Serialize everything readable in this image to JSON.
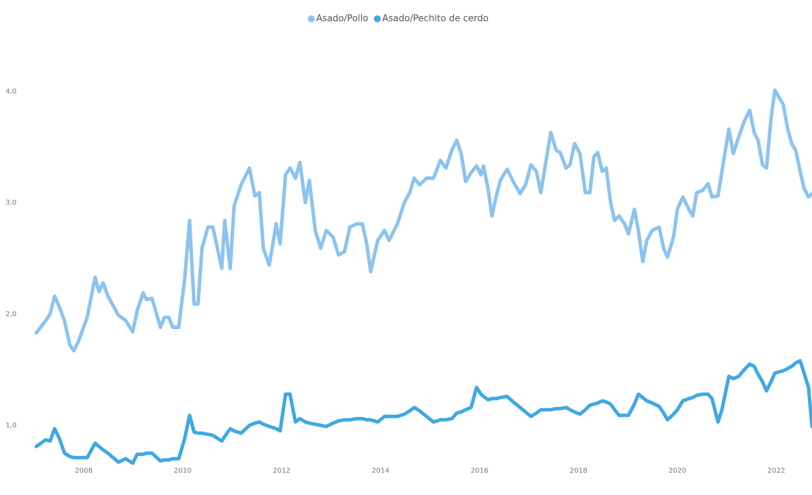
{
  "chart_data": {
    "type": "line",
    "x": [
      2007.04,
      2007.23,
      2007.32,
      2007.41,
      2007.51,
      2007.61,
      2007.72,
      2007.8,
      2007.89,
      2008.07,
      2008.23,
      2008.31,
      2008.39,
      2008.49,
      2008.7,
      2008.85,
      2008.99,
      2009.08,
      2009.2,
      2009.27,
      2009.38,
      2009.55,
      2009.63,
      2009.72,
      2009.8,
      2009.92,
      2010.04,
      2010.14,
      2010.23,
      2010.31,
      2010.39,
      2010.51,
      2010.61,
      2010.79,
      2010.85,
      2010.96,
      2011.04,
      2011.18,
      2011.35,
      2011.46,
      2011.55,
      2011.63,
      2011.75,
      2011.89,
      2011.97,
      2012.08,
      2012.17,
      2012.28,
      2012.37,
      2012.48,
      2012.56,
      2012.68,
      2012.79,
      2012.9,
      2013.04,
      2013.15,
      2013.27,
      2013.38,
      2013.52,
      2013.63,
      2013.72,
      2013.8,
      2013.94,
      2014.08,
      2014.17,
      2014.34,
      2014.48,
      2014.59,
      2014.68,
      2014.79,
      2014.93,
      2015.07,
      2015.21,
      2015.32,
      2015.44,
      2015.54,
      2015.63,
      2015.72,
      2015.83,
      2015.94,
      2016.03,
      2016.08,
      2016.17,
      2016.25,
      2016.34,
      2016.42,
      2016.56,
      2016.68,
      2016.82,
      2016.93,
      2017.04,
      2017.15,
      2017.24,
      2017.32,
      2017.44,
      2017.55,
      2017.63,
      2017.75,
      2017.83,
      2017.92,
      2018.03,
      2018.14,
      2018.23,
      2018.31,
      2018.39,
      2018.48,
      2018.56,
      2018.65,
      2018.73,
      2018.82,
      2018.93,
      2019.01,
      2019.13,
      2019.21,
      2019.3,
      2019.38,
      2019.49,
      2019.63,
      2019.72,
      2019.8,
      2019.92,
      2020.0,
      2020.11,
      2020.23,
      2020.31,
      2020.39,
      2020.51,
      2020.62,
      2020.7,
      2020.82,
      2020.9,
      2021.04,
      2021.13,
      2021.24,
      2021.35,
      2021.46,
      2021.55,
      2021.63,
      2021.72,
      2021.8,
      2021.89,
      2021.97,
      2022.06,
      2022.14,
      2022.23,
      2022.31,
      2022.39,
      2022.48,
      2022.56,
      2022.65,
      2022.72
    ],
    "series": [
      {
        "name": "Asado/Pollo",
        "color": "#8cc3ef",
        "values": [
          1.83,
          1.94,
          2.0,
          2.16,
          2.06,
          1.94,
          1.72,
          1.67,
          1.75,
          1.97,
          2.33,
          2.2,
          2.28,
          2.16,
          1.99,
          1.94,
          1.84,
          2.03,
          2.19,
          2.13,
          2.14,
          1.88,
          1.97,
          1.97,
          1.88,
          1.88,
          2.31,
          2.84,
          2.09,
          2.09,
          2.59,
          2.78,
          2.78,
          2.41,
          2.84,
          2.41,
          2.97,
          3.16,
          3.31,
          3.06,
          3.09,
          2.59,
          2.44,
          2.81,
          2.63,
          3.25,
          3.31,
          3.22,
          3.36,
          3.0,
          3.2,
          2.75,
          2.59,
          2.75,
          2.69,
          2.53,
          2.56,
          2.78,
          2.81,
          2.81,
          2.63,
          2.38,
          2.66,
          2.75,
          2.66,
          2.81,
          3.0,
          3.09,
          3.22,
          3.16,
          3.22,
          3.22,
          3.38,
          3.31,
          3.47,
          3.56,
          3.44,
          3.19,
          3.27,
          3.33,
          3.25,
          3.33,
          3.13,
          2.88,
          3.06,
          3.2,
          3.3,
          3.19,
          3.08,
          3.16,
          3.34,
          3.28,
          3.09,
          3.31,
          3.63,
          3.47,
          3.45,
          3.31,
          3.34,
          3.53,
          3.44,
          3.09,
          3.09,
          3.41,
          3.45,
          3.28,
          3.31,
          3.0,
          2.84,
          2.88,
          2.81,
          2.72,
          2.94,
          2.75,
          2.47,
          2.66,
          2.75,
          2.78,
          2.59,
          2.51,
          2.69,
          2.94,
          3.05,
          2.94,
          2.88,
          3.09,
          3.11,
          3.17,
          3.05,
          3.06,
          3.28,
          3.66,
          3.44,
          3.59,
          3.73,
          3.83,
          3.63,
          3.56,
          3.34,
          3.31,
          3.75,
          4.01,
          3.94,
          3.88,
          3.66,
          3.53,
          3.47,
          3.28,
          3.13,
          3.05,
          3.08
        ]
      },
      {
        "name": "Asado/Pechito de cerdo",
        "color": "#3fa9e0",
        "values": [
          0.81,
          0.87,
          0.86,
          0.97,
          0.88,
          0.75,
          0.72,
          0.71,
          0.71,
          0.71,
          0.84,
          0.81,
          0.78,
          0.75,
          0.67,
          0.7,
          0.66,
          0.74,
          0.74,
          0.75,
          0.75,
          0.68,
          0.69,
          0.69,
          0.7,
          0.7,
          0.88,
          1.09,
          0.94,
          0.93,
          0.93,
          0.92,
          0.91,
          0.86,
          0.9,
          0.97,
          0.95,
          0.93,
          1.0,
          1.02,
          1.03,
          1.01,
          0.99,
          0.97,
          0.95,
          1.28,
          1.28,
          1.03,
          1.06,
          1.03,
          1.02,
          1.01,
          1.0,
          0.99,
          1.02,
          1.04,
          1.05,
          1.05,
          1.06,
          1.06,
          1.05,
          1.05,
          1.03,
          1.08,
          1.08,
          1.08,
          1.1,
          1.13,
          1.16,
          1.13,
          1.08,
          1.03,
          1.05,
          1.05,
          1.06,
          1.11,
          1.12,
          1.14,
          1.16,
          1.34,
          1.28,
          1.26,
          1.23,
          1.24,
          1.24,
          1.25,
          1.26,
          1.21,
          1.16,
          1.12,
          1.08,
          1.11,
          1.14,
          1.14,
          1.14,
          1.15,
          1.15,
          1.16,
          1.14,
          1.12,
          1.1,
          1.14,
          1.18,
          1.19,
          1.2,
          1.22,
          1.21,
          1.19,
          1.14,
          1.09,
          1.09,
          1.09,
          1.19,
          1.28,
          1.25,
          1.22,
          1.2,
          1.17,
          1.11,
          1.05,
          1.1,
          1.14,
          1.22,
          1.24,
          1.25,
          1.27,
          1.28,
          1.28,
          1.24,
          1.03,
          1.14,
          1.44,
          1.42,
          1.44,
          1.5,
          1.55,
          1.53,
          1.46,
          1.39,
          1.31,
          1.39,
          1.47,
          1.48,
          1.49,
          1.51,
          1.53,
          1.56,
          1.58,
          1.47,
          1.34,
          0.99
        ]
      }
    ],
    "xlim": [
      2007.04,
      2022.72
    ],
    "xticks": [
      2008,
      2010,
      2012,
      2014,
      2016,
      2018,
      2020,
      2022
    ],
    "ylim": [
      0.65,
      4.4
    ],
    "yticks": [
      {
        "value": 1,
        "label": "1,0"
      },
      {
        "value": 2,
        "label": "2,0"
      },
      {
        "value": 3,
        "label": "3,0"
      },
      {
        "value": 4,
        "label": "4,0"
      }
    ],
    "legend": "top"
  }
}
